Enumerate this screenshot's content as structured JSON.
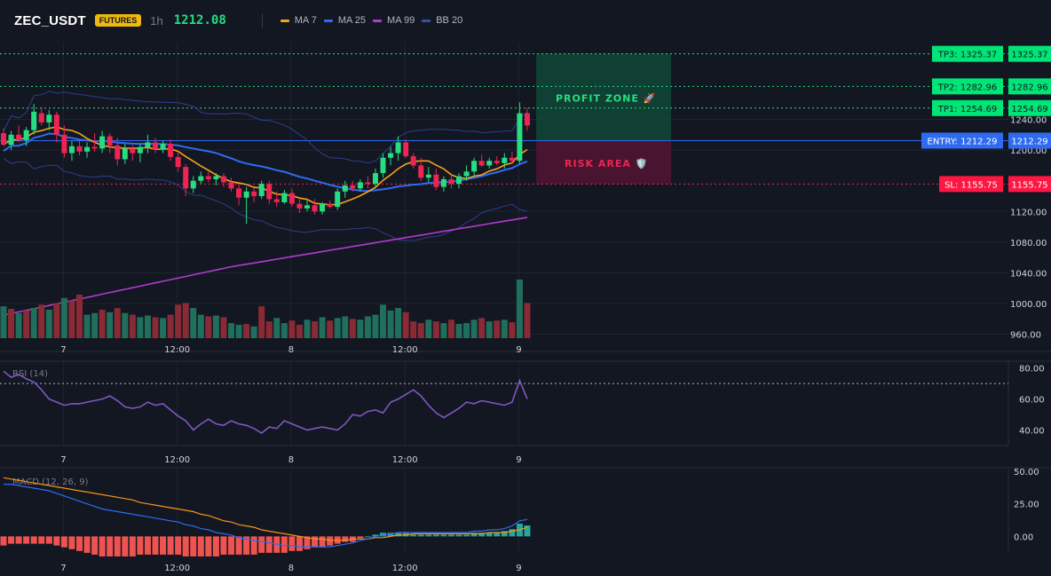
{
  "header": {
    "symbol": "ZEC_USDT",
    "badge": "FUTURES",
    "timeframe": "1h",
    "price": "1212.08",
    "legend": [
      {
        "label": "MA 7",
        "color": "#f7a21b"
      },
      {
        "label": "MA 25",
        "color": "#2f6bf0"
      },
      {
        "label": "MA 99",
        "color": "#b23bd0"
      },
      {
        "label": "BB 20",
        "color": "#3550a6"
      }
    ]
  },
  "colors": {
    "background": "#131722",
    "up": "#26de81",
    "down": "#ee2552",
    "grid": "#1f2430",
    "axis_text": "#d1d4dc",
    "entry": "#2f6bf0",
    "rsi": "#7e57c2",
    "macd_line": "#2f6bf0",
    "signal_line": "#f7931a",
    "hist_pos": "#26a69a",
    "hist_neg": "#ef5350"
  },
  "levels": {
    "tp3": {
      "label": "TP3: 1325.37",
      "value": 1325.37,
      "tag": "1325.37"
    },
    "tp2": {
      "label": "TP2: 1282.96",
      "value": 1282.96,
      "tag": "1282.96"
    },
    "tp1": {
      "label": "TP1: 1254.69",
      "value": 1254.69,
      "tag": "1254.69"
    },
    "entry": {
      "label": "ENTRY: 1212.29",
      "value": 1212.29,
      "tag": "1212.29"
    },
    "sl": {
      "label": "SL: 1155.75",
      "value": 1155.75,
      "tag": "1155.75"
    }
  },
  "zones": {
    "profit_label": "PROFIT ZONE 🚀",
    "risk_label": "RISK AREA 🛡️"
  },
  "chart_data": [
    {
      "type": "candlestick",
      "ylim": [
        955,
        1340
      ],
      "y_ticks": [
        "1240.00",
        "1200.00",
        "1120.00",
        "1080.00",
        "1040.00",
        "1000.00",
        "960.00"
      ],
      "y_tick_values": [
        1240,
        1200,
        1120,
        1080,
        1040,
        1000,
        960
      ],
      "x_tick_labels": [
        "7",
        "12:00",
        "8",
        "12:00",
        "9"
      ],
      "x_tick_index": [
        8,
        23,
        38,
        53,
        68
      ],
      "candles": [
        [
          1222,
          1228,
          1205,
          1207
        ],
        [
          1207,
          1225,
          1200,
          1220
        ],
        [
          1220,
          1232,
          1210,
          1213
        ],
        [
          1213,
          1230,
          1205,
          1226
        ],
        [
          1226,
          1260,
          1220,
          1250
        ],
        [
          1248,
          1256,
          1232,
          1236
        ],
        [
          1236,
          1252,
          1226,
          1246
        ],
        [
          1246,
          1250,
          1210,
          1220
        ],
        [
          1220,
          1232,
          1190,
          1196
        ],
        [
          1196,
          1212,
          1186,
          1205
        ],
        [
          1205,
          1215,
          1193,
          1198
        ],
        [
          1198,
          1210,
          1190,
          1204
        ],
        [
          1204,
          1222,
          1198,
          1202
        ],
        [
          1202,
          1225,
          1196,
          1218
        ],
        [
          1218,
          1222,
          1196,
          1206
        ],
        [
          1206,
          1216,
          1180,
          1188
        ],
        [
          1188,
          1208,
          1182,
          1202
        ],
        [
          1202,
          1206,
          1186,
          1196
        ],
        [
          1196,
          1208,
          1184,
          1204
        ],
        [
          1204,
          1220,
          1196,
          1210
        ],
        [
          1210,
          1216,
          1196,
          1201
        ],
        [
          1201,
          1212,
          1196,
          1208
        ],
        [
          1208,
          1214,
          1186,
          1191
        ],
        [
          1191,
          1198,
          1172,
          1178
        ],
        [
          1178,
          1182,
          1140,
          1150
        ],
        [
          1150,
          1166,
          1144,
          1160
        ],
        [
          1160,
          1172,
          1156,
          1166
        ],
        [
          1166,
          1172,
          1158,
          1162
        ],
        [
          1162,
          1170,
          1154,
          1166
        ],
        [
          1166,
          1170,
          1152,
          1158
        ],
        [
          1158,
          1164,
          1146,
          1150
        ],
        [
          1150,
          1156,
          1128,
          1138
        ],
        [
          1138,
          1152,
          1104,
          1146
        ],
        [
          1146,
          1150,
          1132,
          1140
        ],
        [
          1140,
          1160,
          1136,
          1156
        ],
        [
          1156,
          1160,
          1130,
          1136
        ],
        [
          1136,
          1146,
          1126,
          1132
        ],
        [
          1132,
          1148,
          1130,
          1144
        ],
        [
          1144,
          1150,
          1126,
          1130
        ],
        [
          1130,
          1136,
          1118,
          1124
        ],
        [
          1124,
          1134,
          1120,
          1128
        ],
        [
          1128,
          1136,
          1116,
          1120
        ],
        [
          1120,
          1132,
          1116,
          1130
        ],
        [
          1130,
          1134,
          1124,
          1126
        ],
        [
          1126,
          1150,
          1122,
          1146
        ],
        [
          1146,
          1160,
          1138,
          1154
        ],
        [
          1154,
          1160,
          1146,
          1150
        ],
        [
          1150,
          1162,
          1146,
          1158
        ],
        [
          1158,
          1166,
          1150,
          1156
        ],
        [
          1156,
          1176,
          1150,
          1170
        ],
        [
          1170,
          1196,
          1164,
          1190
        ],
        [
          1190,
          1204,
          1180,
          1196
        ],
        [
          1196,
          1218,
          1186,
          1210
        ],
        [
          1210,
          1214,
          1190,
          1192
        ],
        [
          1192,
          1196,
          1176,
          1180
        ],
        [
          1180,
          1190,
          1160,
          1164
        ],
        [
          1164,
          1178,
          1158,
          1168
        ],
        [
          1168,
          1176,
          1148,
          1152
        ],
        [
          1152,
          1166,
          1146,
          1162
        ],
        [
          1162,
          1170,
          1150,
          1156
        ],
        [
          1156,
          1170,
          1150,
          1166
        ],
        [
          1166,
          1180,
          1160,
          1172
        ],
        [
          1172,
          1190,
          1166,
          1186
        ],
        [
          1186,
          1194,
          1178,
          1180
        ],
        [
          1180,
          1190,
          1176,
          1186
        ],
        [
          1186,
          1192,
          1180,
          1183
        ],
        [
          1183,
          1196,
          1176,
          1190
        ],
        [
          1190,
          1198,
          1182,
          1186
        ],
        [
          1186,
          1262,
          1182,
          1248
        ],
        [
          1248,
          1255,
          1225,
          1232
        ]
      ],
      "volume": [
        38,
        35,
        30,
        33,
        36,
        40,
        34,
        42,
        48,
        45,
        52,
        28,
        30,
        34,
        31,
        36,
        30,
        28,
        25,
        27,
        25,
        24,
        28,
        40,
        42,
        36,
        28,
        26,
        27,
        25,
        18,
        16,
        17,
        14,
        38,
        20,
        24,
        18,
        21,
        16,
        22,
        20,
        25,
        21,
        24,
        26,
        23,
        22,
        26,
        28,
        40,
        33,
        36,
        31,
        20,
        18,
        22,
        20,
        18,
        22,
        17,
        18,
        22,
        24,
        20,
        21,
        22,
        19,
        70,
        42
      ],
      "volume_colors": [
        "up",
        "down",
        "up",
        "down",
        "up",
        "down",
        "up",
        "down",
        "up",
        "down",
        "down",
        "up",
        "up",
        "down",
        "up",
        "down",
        "up",
        "down",
        "up",
        "up",
        "down",
        "up",
        "down",
        "down",
        "down",
        "up",
        "up",
        "down",
        "up",
        "down",
        "up",
        "up",
        "down",
        "up",
        "down",
        "down",
        "up",
        "up",
        "down",
        "down",
        "up",
        "down",
        "up",
        "down",
        "up",
        "up",
        "down",
        "up",
        "up",
        "up",
        "up",
        "up",
        "up",
        "down",
        "down",
        "down",
        "up",
        "down",
        "up",
        "down",
        "up",
        "up",
        "up",
        "down",
        "up",
        "down",
        "up",
        "down",
        "up",
        "down"
      ]
    },
    {
      "type": "line",
      "title": "RSI (14)",
      "ylim": [
        30,
        85
      ],
      "y_ticks": [
        "80.00",
        "60.00",
        "40.00"
      ],
      "y_tick_values": [
        80,
        60,
        40
      ],
      "overbought": 70,
      "values": [
        78,
        74,
        76,
        73,
        71,
        66,
        60,
        58,
        56,
        57,
        57,
        58,
        59,
        60,
        62,
        59,
        55,
        54,
        55,
        58,
        56,
        57,
        53,
        49,
        46,
        40,
        44,
        47,
        44,
        43,
        46,
        44,
        43,
        41,
        38,
        42,
        41,
        46,
        44,
        42,
        40,
        41,
        42,
        41,
        40,
        44,
        50,
        49,
        52,
        53,
        51,
        58,
        60,
        63,
        66,
        62,
        56,
        51,
        48,
        51,
        54,
        58,
        57,
        59,
        58,
        57,
        56,
        58,
        72,
        60
      ]
    },
    {
      "type": "macd",
      "title": "MACD (12, 26, 9)",
      "ylim": [
        -12,
        52
      ],
      "y_ticks": [
        "50.00",
        "25.00",
        "0.00"
      ],
      "y_tick_values": [
        50,
        25,
        0
      ],
      "macd": [
        40,
        40,
        39,
        38,
        37,
        36,
        35,
        33,
        31,
        29,
        27,
        25,
        23,
        21,
        20,
        19,
        18,
        17,
        16,
        15,
        14,
        13,
        12,
        11,
        9,
        8,
        6,
        5,
        3,
        2,
        1,
        -1,
        -2,
        -3,
        -4,
        -5,
        -6,
        -7,
        -7,
        -8,
        -8,
        -8,
        -8,
        -8,
        -7,
        -6,
        -5,
        -3,
        -2,
        0,
        1,
        2,
        3,
        3,
        3,
        3,
        3,
        3,
        3,
        3,
        3,
        3,
        4,
        4,
        5,
        5,
        6,
        8,
        12,
        13
      ],
      "signal": [
        45,
        44,
        43,
        42,
        41,
        40,
        39,
        38,
        37,
        36,
        35,
        34,
        33,
        32,
        31,
        30,
        29,
        28,
        26,
        25,
        24,
        23,
        22,
        21,
        20,
        19,
        17,
        16,
        14,
        12,
        11,
        9,
        8,
        7,
        5,
        4,
        3,
        2,
        1,
        0,
        -1,
        -2,
        -2,
        -3,
        -3,
        -3,
        -2,
        -2,
        -2,
        -1,
        -1,
        0,
        1,
        1,
        2,
        2,
        2,
        2,
        2,
        2,
        2,
        2,
        2,
        2,
        3,
        3,
        3,
        4,
        5,
        7
      ],
      "x_tick_labels": [
        "7",
        "12:00",
        "8",
        "12:00",
        "9"
      ]
    }
  ]
}
